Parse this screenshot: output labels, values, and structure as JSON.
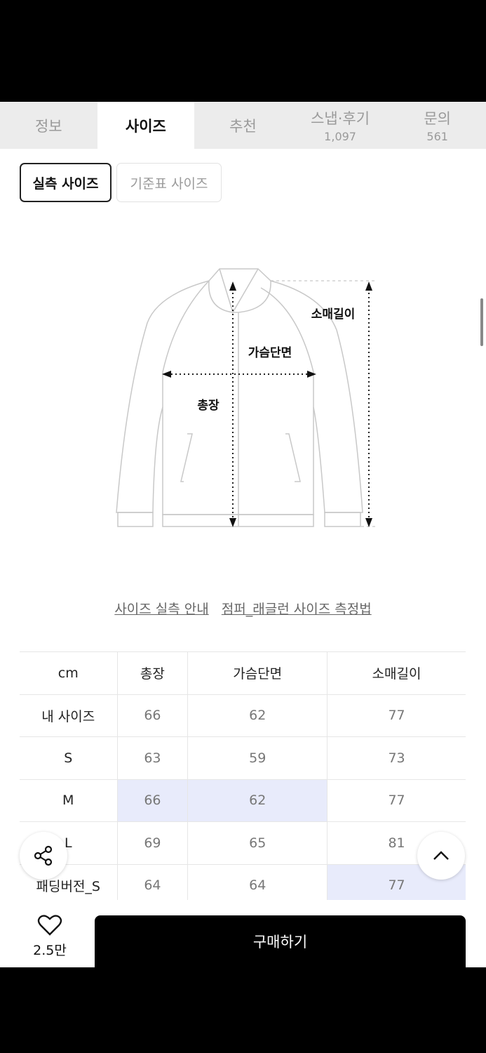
{
  "tabs": [
    {
      "label": "정보"
    },
    {
      "label": "사이즈",
      "active": true
    },
    {
      "label": "추천"
    },
    {
      "label": "스냅·후기",
      "count": "1,097"
    },
    {
      "label": "문의",
      "count": "561"
    }
  ],
  "size_toggle": {
    "actual": "실측 사이즈",
    "standard": "기준표 사이즈"
  },
  "diagram": {
    "sleeve": "소매길이",
    "chest": "가슴단면",
    "length": "총장"
  },
  "links": {
    "guide": "사이즈 실측 안내",
    "method": "점퍼_래글런 사이즈 측정법"
  },
  "table": {
    "headers": [
      "cm",
      "총장",
      "가슴단면",
      "소매길이"
    ],
    "rows": [
      {
        "cells": [
          "내 사이즈",
          "66",
          "62",
          "77"
        ]
      },
      {
        "cells": [
          "S",
          "63",
          "59",
          "73"
        ]
      },
      {
        "cells": [
          "M",
          "66",
          "62",
          "77"
        ],
        "highlight": [
          1,
          2
        ]
      },
      {
        "cells": [
          "L",
          "69",
          "65",
          "81"
        ]
      },
      {
        "cells": [
          "패딩버전_S",
          "64",
          "64",
          "77"
        ],
        "highlight": [
          3
        ]
      }
    ]
  },
  "bottom": {
    "likes": "2.5만",
    "buy": "구매하기"
  },
  "colors": {
    "highlight": "#e8ebfb",
    "buy_bg": "#000000"
  },
  "icons": [
    "share-icon",
    "chevron-up-icon",
    "heart-icon"
  ]
}
